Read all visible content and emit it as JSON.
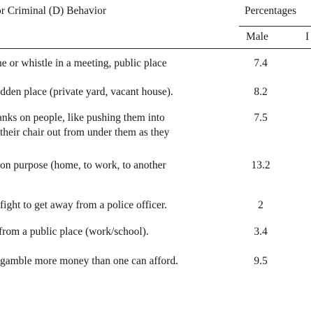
{
  "header": {
    "behavior_label": "or Criminal (D) Behavior",
    "percentages_label": "Percentages",
    "male_label": "Male",
    "female_partial": "I"
  },
  "rows": [
    {
      "lines": [
        "ne or whistle in a meeting, public place"
      ],
      "male": "7.4"
    },
    {
      "lines": [
        "idden place (private yard, vacant house)."
      ],
      "male": "8.2"
    },
    {
      "lines": [
        "anks on people, like pushing them into",
        "their chair out from under them as they"
      ],
      "male": "7.5"
    },
    {
      "lines": [
        "on purpose (home, to work, to another"
      ],
      "male": "13.2"
    },
    {
      "lines": [
        "fight to get away from a police officer."
      ],
      "male": "2"
    },
    {
      "lines": [
        "from a public place (work/school)."
      ],
      "male": "3.4"
    },
    {
      "lines": [
        "gamble more money than one can afford."
      ],
      "male": "9.5"
    }
  ]
}
